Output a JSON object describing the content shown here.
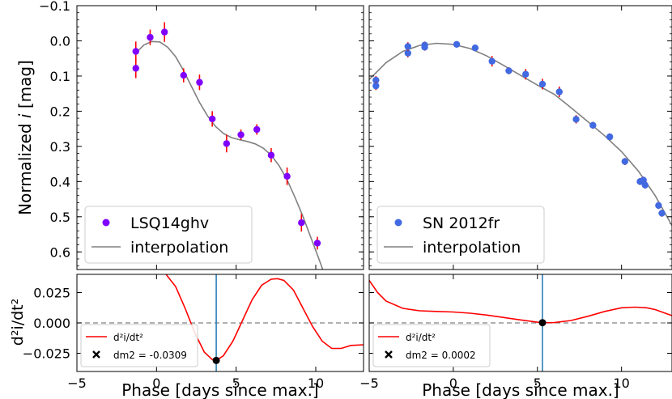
{
  "figure": {
    "ylabel_top_prefix": "Normalized ",
    "ylabel_top_var": "i",
    "ylabel_top_suffix": " [mag]",
    "ylabel_bottom": "d²i/dt²",
    "xlabel": "Phase [days since max.]"
  },
  "colors": {
    "lsq_points": "#7f00ff",
    "sn_points": "#4169e1",
    "errorbar": "#ff0000",
    "interp": "#808080",
    "deriv": "#ff0000",
    "vline": "#1f77b4",
    "zero_line": "#808080"
  },
  "chart_data": [
    {
      "panel": "top-left",
      "type": "scatter",
      "xlim": [
        -5,
        13
      ],
      "ylim": [
        0.65,
        -0.1
      ],
      "yticks": [
        -0.1,
        0.0,
        0.1,
        0.2,
        0.3,
        0.4,
        0.5,
        0.6
      ],
      "ytick_labels": [
        "−0.1",
        "0.0",
        "0.1",
        "0.2",
        "0.3",
        "0.4",
        "0.5",
        "0.6"
      ],
      "legend": {
        "position": "lower-left",
        "points_label": "LSQ14ghv",
        "line_label": "interpolation"
      },
      "points": [
        {
          "x": -1.3,
          "y": 0.03,
          "err": 0.028
        },
        {
          "x": -1.3,
          "y": 0.078,
          "err": 0.028
        },
        {
          "x": -0.4,
          "y": -0.01,
          "err": 0.022
        },
        {
          "x": 0.5,
          "y": -0.025,
          "err": 0.028
        },
        {
          "x": 1.7,
          "y": 0.098,
          "err": 0.02
        },
        {
          "x": 2.7,
          "y": 0.118,
          "err": 0.022
        },
        {
          "x": 3.5,
          "y": 0.222,
          "err": 0.022
        },
        {
          "x": 4.4,
          "y": 0.292,
          "err": 0.025
        },
        {
          "x": 5.3,
          "y": 0.267,
          "err": 0.015
        },
        {
          "x": 6.3,
          "y": 0.252,
          "err": 0.015
        },
        {
          "x": 7.2,
          "y": 0.325,
          "err": 0.02
        },
        {
          "x": 8.2,
          "y": 0.385,
          "err": 0.025
        },
        {
          "x": 9.1,
          "y": 0.517,
          "err": 0.025
        },
        {
          "x": 10.1,
          "y": 0.575,
          "err": 0.018
        }
      ],
      "interpolation": {
        "x": [
          -1.3,
          -0.8,
          -0.3,
          0.2,
          0.7,
          1.2,
          1.7,
          2.2,
          2.7,
          3.2,
          3.7,
          4.2,
          4.7,
          5.2,
          5.7,
          6.2,
          6.7,
          7.2,
          7.7,
          8.2,
          8.7,
          9.2,
          9.7,
          10.2,
          10.6
        ],
        "y": [
          0.035,
          0.012,
          0.002,
          0.003,
          0.018,
          0.045,
          0.085,
          0.13,
          0.175,
          0.213,
          0.243,
          0.263,
          0.275,
          0.281,
          0.286,
          0.293,
          0.305,
          0.325,
          0.355,
          0.395,
          0.445,
          0.5,
          0.56,
          0.62,
          0.67
        ]
      }
    },
    {
      "panel": "top-right",
      "type": "scatter",
      "xlim": [
        -5,
        13
      ],
      "ylim": [
        0.65,
        -0.1
      ],
      "legend": {
        "position": "lower-left",
        "points_label": "SN 2012fr",
        "line_label": "interpolation"
      },
      "points": [
        {
          "x": -4.6,
          "y": 0.112,
          "err": 0.012
        },
        {
          "x": -4.6,
          "y": 0.128,
          "err": 0.012
        },
        {
          "x": -2.7,
          "y": 0.035,
          "err": 0.012
        },
        {
          "x": -2.7,
          "y": 0.016,
          "err": 0.012
        },
        {
          "x": -1.7,
          "y": 0.012,
          "err": 0.01
        },
        {
          "x": -1.7,
          "y": 0.018,
          "err": 0.01
        },
        {
          "x": 0.2,
          "y": 0.01,
          "err": 0.008
        },
        {
          "x": 1.3,
          "y": 0.02,
          "err": 0.008
        },
        {
          "x": 2.3,
          "y": 0.058,
          "err": 0.015
        },
        {
          "x": 3.3,
          "y": 0.085,
          "err": 0.01
        },
        {
          "x": 4.3,
          "y": 0.095,
          "err": 0.015
        },
        {
          "x": 5.3,
          "y": 0.123,
          "err": 0.015
        },
        {
          "x": 6.3,
          "y": 0.145,
          "err": 0.015
        },
        {
          "x": 7.3,
          "y": 0.223,
          "err": 0.012
        },
        {
          "x": 8.3,
          "y": 0.24,
          "err": 0.01
        },
        {
          "x": 9.3,
          "y": 0.273,
          "err": 0.01
        },
        {
          "x": 10.2,
          "y": 0.343,
          "err": 0.01
        },
        {
          "x": 11.1,
          "y": 0.4,
          "err": 0.01
        },
        {
          "x": 11.3,
          "y": 0.396,
          "err": 0.01
        },
        {
          "x": 11.4,
          "y": 0.41,
          "err": 0.01
        },
        {
          "x": 12.2,
          "y": 0.468,
          "err": 0.01
        },
        {
          "x": 12.4,
          "y": 0.49,
          "err": 0.01
        }
      ],
      "interpolation": {
        "x": [
          -5,
          -4,
          -3,
          -2,
          -1,
          0,
          1,
          2,
          3,
          4,
          5,
          6,
          7,
          8,
          9,
          10,
          11,
          12,
          13
        ],
        "y": [
          0.11,
          0.062,
          0.03,
          0.013,
          0.007,
          0.01,
          0.022,
          0.043,
          0.07,
          0.098,
          0.126,
          0.152,
          0.19,
          0.23,
          0.27,
          0.315,
          0.37,
          0.44,
          0.525
        ]
      }
    },
    {
      "panel": "bottom-left",
      "type": "line",
      "xlim": [
        -5,
        13
      ],
      "ylim": [
        -0.04,
        0.04
      ],
      "xticks": [
        -5,
        0,
        5,
        10
      ],
      "xtick_labels": [
        "−5",
        "0",
        "5",
        "10"
      ],
      "yticks": [
        -0.025,
        0.0,
        0.025
      ],
      "ytick_labels": [
        "−0.025",
        "0.000",
        "0.025"
      ],
      "legend": {
        "position": "lower-left",
        "line_label": "d²i/dt²",
        "marker_label": "dm2 = -0.0309"
      },
      "vline_x": 3.75,
      "marker": {
        "x": 3.75,
        "y": -0.0309
      },
      "curve": {
        "x": [
          0.6,
          1.2,
          1.8,
          2.4,
          3.0,
          3.5,
          3.75,
          4.2,
          4.8,
          5.4,
          6.0,
          6.6,
          7.2,
          7.6,
          8.0,
          8.6,
          9.2,
          9.8,
          10.4,
          11.0,
          11.6,
          12.2,
          13.0
        ],
        "y": [
          0.04,
          0.03,
          0.012,
          -0.008,
          -0.024,
          -0.0302,
          -0.0309,
          -0.027,
          -0.015,
          0.002,
          0.019,
          0.031,
          0.036,
          0.0365,
          0.035,
          0.027,
          0.012,
          -0.003,
          -0.015,
          -0.021,
          -0.021,
          -0.0185,
          -0.018
        ]
      }
    },
    {
      "panel": "bottom-right",
      "type": "line",
      "xlim": [
        -5,
        13
      ],
      "ylim": [
        -0.04,
        0.04
      ],
      "xticks": [
        -5,
        0,
        5,
        10
      ],
      "xtick_labels": [
        "−5",
        "0",
        "5",
        "10"
      ],
      "legend": {
        "position": "lower-left",
        "line_label": "d²i/dt²",
        "marker_label": "dm2 = 0.0002"
      },
      "vline_x": 5.3,
      "marker": {
        "x": 5.3,
        "y": 0.0002
      },
      "curve": {
        "x": [
          -5,
          -4.5,
          -4,
          -3,
          -2,
          -1,
          0,
          1,
          2,
          3,
          4,
          5,
          5.3,
          6,
          7,
          8,
          9,
          10,
          10.8,
          11.5,
          12,
          12.5,
          13
        ],
        "y": [
          0.035,
          0.025,
          0.018,
          0.012,
          0.01,
          0.0095,
          0.009,
          0.008,
          0.0065,
          0.0045,
          0.0025,
          0.0006,
          0.0002,
          0.0003,
          0.002,
          0.0055,
          0.0095,
          0.0125,
          0.013,
          0.0125,
          0.011,
          0.0085,
          0.006
        ]
      }
    }
  ]
}
